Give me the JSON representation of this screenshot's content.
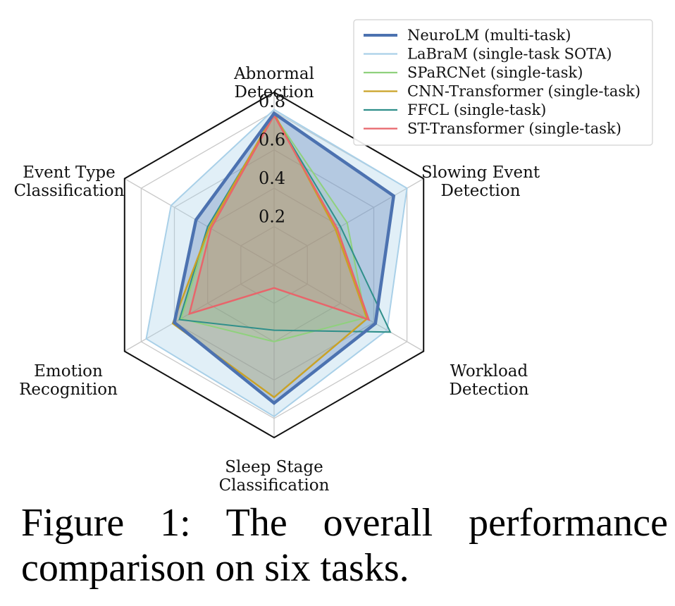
{
  "chart_data": {
    "type": "radar",
    "title": "",
    "axes": [
      [
        "Abnormal",
        "Detection"
      ],
      [
        "Slowing Event",
        "Detection"
      ],
      [
        "Workload",
        "Detection"
      ],
      [
        "Sleep Stage",
        "Classification"
      ],
      [
        "Emotion",
        "Recognition"
      ],
      [
        "Event Type",
        "Classification"
      ]
    ],
    "rlim": [
      0,
      0.9
    ],
    "radial_ticks": [
      0.2,
      0.4,
      0.6,
      0.8
    ],
    "radial_tick_labels": [
      "0.2",
      "0.4",
      "0.6",
      "0.8"
    ],
    "series": [
      {
        "name": "NeuroLM (multi-task)",
        "color": "#4c72b0",
        "values": [
          0.79,
          0.72,
          0.61,
          0.72,
          0.6,
          0.47
        ],
        "fill": true,
        "fill_color": "#4c72b0",
        "fill_opacity": 0.3,
        "stroke_width": 4.5
      },
      {
        "name": "LaBraM (single-task SOTA)",
        "color": "#a9d0e8",
        "values": [
          0.81,
          0.8,
          0.68,
          0.79,
          0.77,
          0.62
        ],
        "fill": true,
        "fill_color": "#a9d0e8",
        "fill_opacity": 0.35,
        "stroke_width": 2
      },
      {
        "name": "SPaRCNet (single-task)",
        "color": "#8fd17d",
        "values": [
          0.78,
          0.44,
          0.55,
          0.4,
          0.56,
          0.39
        ],
        "fill": true,
        "fill_color": "#8fd17d",
        "fill_opacity": 0.15,
        "stroke_width": 2
      },
      {
        "name": "CNN-Transformer (single-task)",
        "color": "#c9a227",
        "values": [
          0.79,
          0.37,
          0.56,
          0.69,
          0.61,
          0.39
        ],
        "fill": true,
        "fill_color": "#c9a227",
        "fill_opacity": 0.22,
        "stroke_width": 2.5
      },
      {
        "name": "FFCL (single-task)",
        "color": "#2f8f8a",
        "values": [
          0.78,
          0.4,
          0.7,
          0.34,
          0.57,
          0.4
        ],
        "fill": true,
        "fill_color": "#2f8f8a",
        "fill_opacity": 0.1,
        "stroke_width": 2
      },
      {
        "name": "ST-Transformer (single-task)",
        "color": "#e8656b",
        "values": [
          0.78,
          0.38,
          0.57,
          0.12,
          0.51,
          0.38
        ],
        "fill": true,
        "fill_color": "#e8656b",
        "fill_opacity": 0.18,
        "stroke_width": 2.5
      }
    ],
    "legend": {
      "position": "top-right"
    }
  },
  "caption": "Figure 1: The overall performance comparison on six tasks."
}
